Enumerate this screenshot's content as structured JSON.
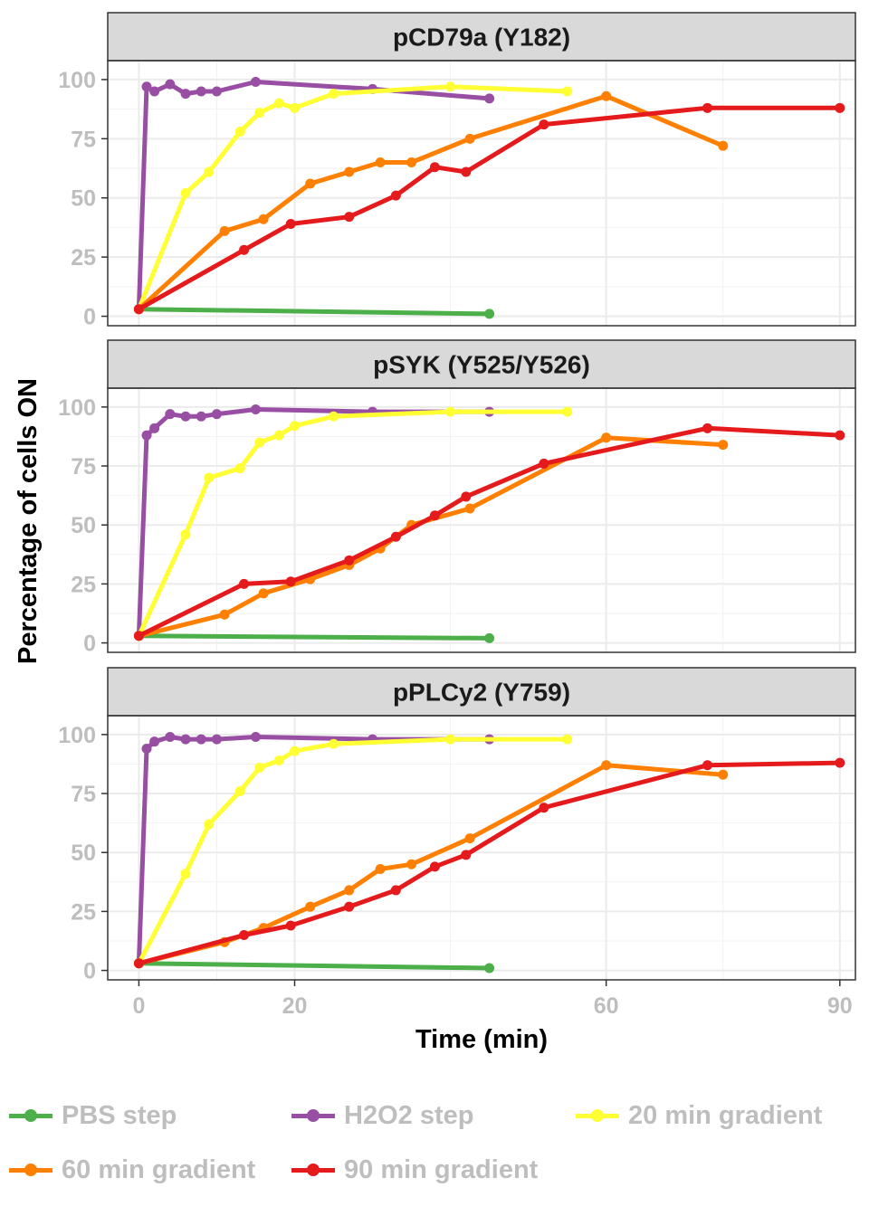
{
  "chart_data": {
    "type": "line",
    "xlabel": "Time (min)",
    "ylabel": "Percentage of cells ON",
    "xlim": [
      -4,
      92
    ],
    "ylim": [
      -4,
      108
    ],
    "x_ticks": [
      0,
      20,
      60,
      90
    ],
    "y_ticks": [
      0,
      25,
      50,
      75,
      100
    ],
    "x_tick_labels": [
      "0",
      "20",
      "60",
      "90"
    ],
    "y_tick_labels": [
      "0",
      "25",
      "50",
      "75",
      "100"
    ],
    "grid": true,
    "legend_position": "bottom",
    "legend": [
      {
        "key": "pbs",
        "label": "PBS step",
        "color": "#4DAF4A"
      },
      {
        "key": "h2o2",
        "label": "H2O2 step",
        "color": "#984EA3"
      },
      {
        "key": "g20",
        "label": "20 min gradient",
        "color": "#FFFF33"
      },
      {
        "key": "g60",
        "label": "60 min gradient",
        "color": "#FF7F00"
      },
      {
        "key": "g90",
        "label": "90 min gradient",
        "color": "#E41A1C"
      }
    ],
    "panels": [
      {
        "title": "pCD79a (Y182)",
        "series": [
          {
            "key": "pbs",
            "x": [
              0,
              45
            ],
            "y": [
              3,
              1
            ]
          },
          {
            "key": "h2o2",
            "x": [
              0,
              1,
              2,
              4,
              6,
              8,
              10,
              15,
              30,
              45
            ],
            "y": [
              3,
              97,
              95,
              98,
              94,
              95,
              95,
              99,
              96,
              92
            ]
          },
          {
            "key": "g20",
            "x": [
              0,
              6,
              9,
              13,
              15.5,
              18,
              20,
              25,
              40,
              55
            ],
            "y": [
              3,
              52,
              61,
              78,
              86,
              90,
              88,
              94,
              97,
              95
            ]
          },
          {
            "key": "g60",
            "x": [
              0,
              11,
              16,
              22,
              27,
              31,
              35,
              42.5,
              60,
              75
            ],
            "y": [
              3,
              36,
              41,
              56,
              61,
              65,
              65,
              75,
              93,
              72
            ]
          },
          {
            "key": "g90",
            "x": [
              0,
              13.5,
              19.5,
              27,
              33,
              38,
              42,
              52,
              73,
              90
            ],
            "y": [
              3,
              28,
              39,
              42,
              51,
              63,
              61,
              81,
              88,
              88
            ]
          }
        ]
      },
      {
        "title": "pSYK (Y525/Y526)",
        "series": [
          {
            "key": "pbs",
            "x": [
              0,
              45
            ],
            "y": [
              3,
              2
            ]
          },
          {
            "key": "h2o2",
            "x": [
              0,
              1,
              2,
              4,
              6,
              8,
              10,
              15,
              30,
              45
            ],
            "y": [
              3,
              88,
              91,
              97,
              96,
              96,
              97,
              99,
              98,
              98
            ]
          },
          {
            "key": "g20",
            "x": [
              0,
              6,
              9,
              13,
              15.5,
              18,
              20,
              25,
              40,
              55
            ],
            "y": [
              3,
              46,
              70,
              74,
              85,
              88,
              92,
              96,
              98,
              98
            ]
          },
          {
            "key": "g60",
            "x": [
              0,
              11,
              16,
              22,
              27,
              31,
              35,
              42.5,
              60,
              75
            ],
            "y": [
              3,
              12,
              21,
              27,
              33,
              40,
              50,
              57,
              87,
              84
            ]
          },
          {
            "key": "g90",
            "x": [
              0,
              13.5,
              19.5,
              27,
              33,
              38,
              42,
              52,
              73,
              90
            ],
            "y": [
              3,
              25,
              26,
              35,
              45,
              54,
              62,
              76,
              91,
              88
            ]
          }
        ]
      },
      {
        "title": "pPLCy2 (Y759)",
        "series": [
          {
            "key": "pbs",
            "x": [
              0,
              45
            ],
            "y": [
              3,
              1
            ]
          },
          {
            "key": "h2o2",
            "x": [
              0,
              1,
              2,
              4,
              6,
              8,
              10,
              15,
              30,
              45
            ],
            "y": [
              3,
              94,
              97,
              99,
              98,
              98,
              98,
              99,
              98,
              98
            ]
          },
          {
            "key": "g20",
            "x": [
              0,
              6,
              9,
              13,
              15.5,
              18,
              20,
              25,
              40,
              55
            ],
            "y": [
              3,
              41,
              62,
              76,
              86,
              89,
              93,
              96,
              98,
              98
            ]
          },
          {
            "key": "g60",
            "x": [
              0,
              11,
              16,
              22,
              27,
              31,
              35,
              42.5,
              60,
              75
            ],
            "y": [
              3,
              12,
              18,
              27,
              34,
              43,
              45,
              56,
              87,
              83
            ]
          },
          {
            "key": "g90",
            "x": [
              0,
              13.5,
              19.5,
              27,
              33,
              38,
              42,
              52,
              73,
              90
            ],
            "y": [
              3,
              15,
              19,
              27,
              34,
              44,
              49,
              69,
              87,
              88
            ]
          }
        ]
      }
    ]
  }
}
